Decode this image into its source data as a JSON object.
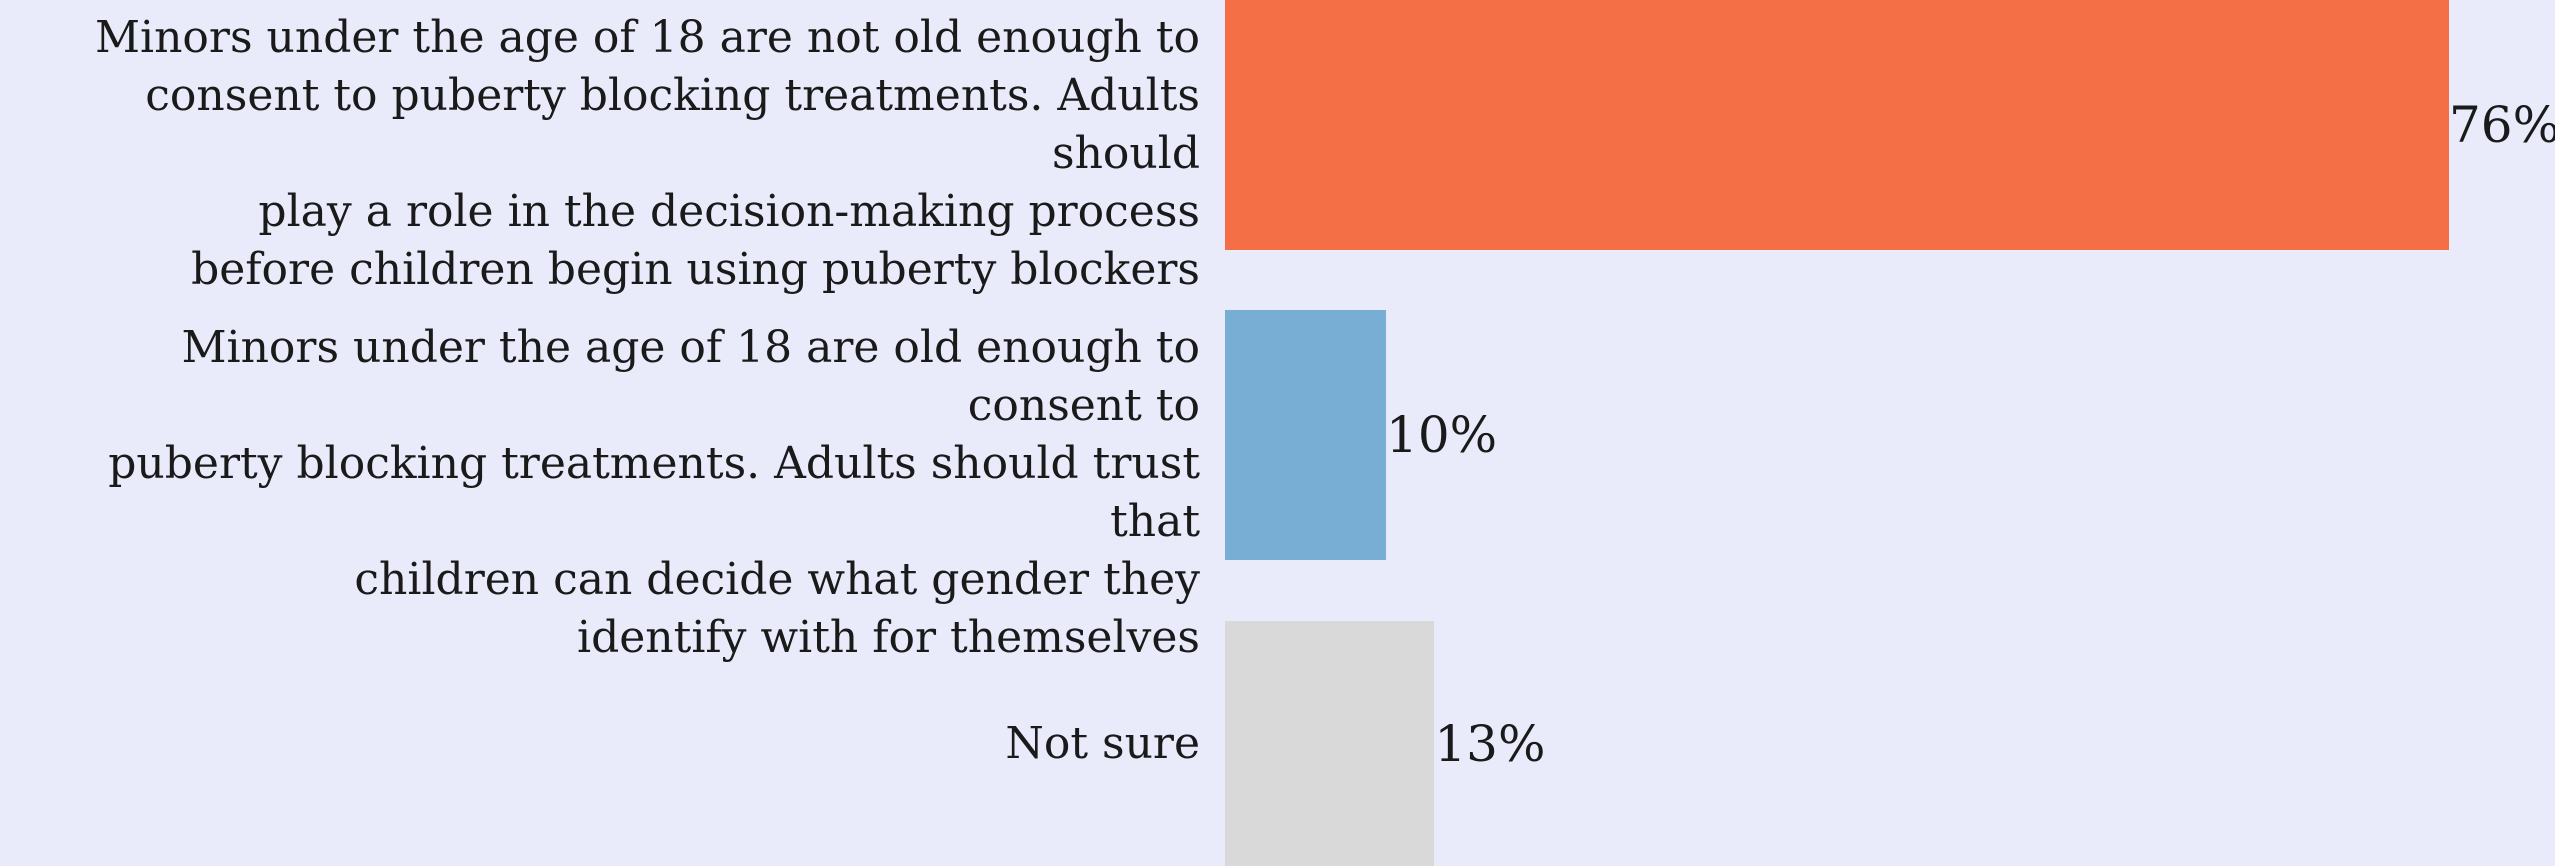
{
  "chart_data": {
    "type": "bar",
    "orientation": "horizontal",
    "categories": [
      "Minors under the age of 18 are not old enough to\nconsent to puberty blocking treatments. Adults should\nplay a role in the decision-making process\nbefore children begin using puberty blockers",
      "Minors under the age of 18 are old enough to consent to\npuberty blocking treatments. Adults should trust that\nchildren can decide what gender they\nidentify with for themselves",
      "Not sure"
    ],
    "values": [
      76,
      10,
      13
    ],
    "value_labels": [
      "76%",
      "10%",
      "13%"
    ],
    "colors": [
      "#f46f46",
      "#78aed3",
      "#d9d9d9"
    ],
    "xlim": [
      0,
      76
    ],
    "grid": false,
    "legend": "none"
  }
}
